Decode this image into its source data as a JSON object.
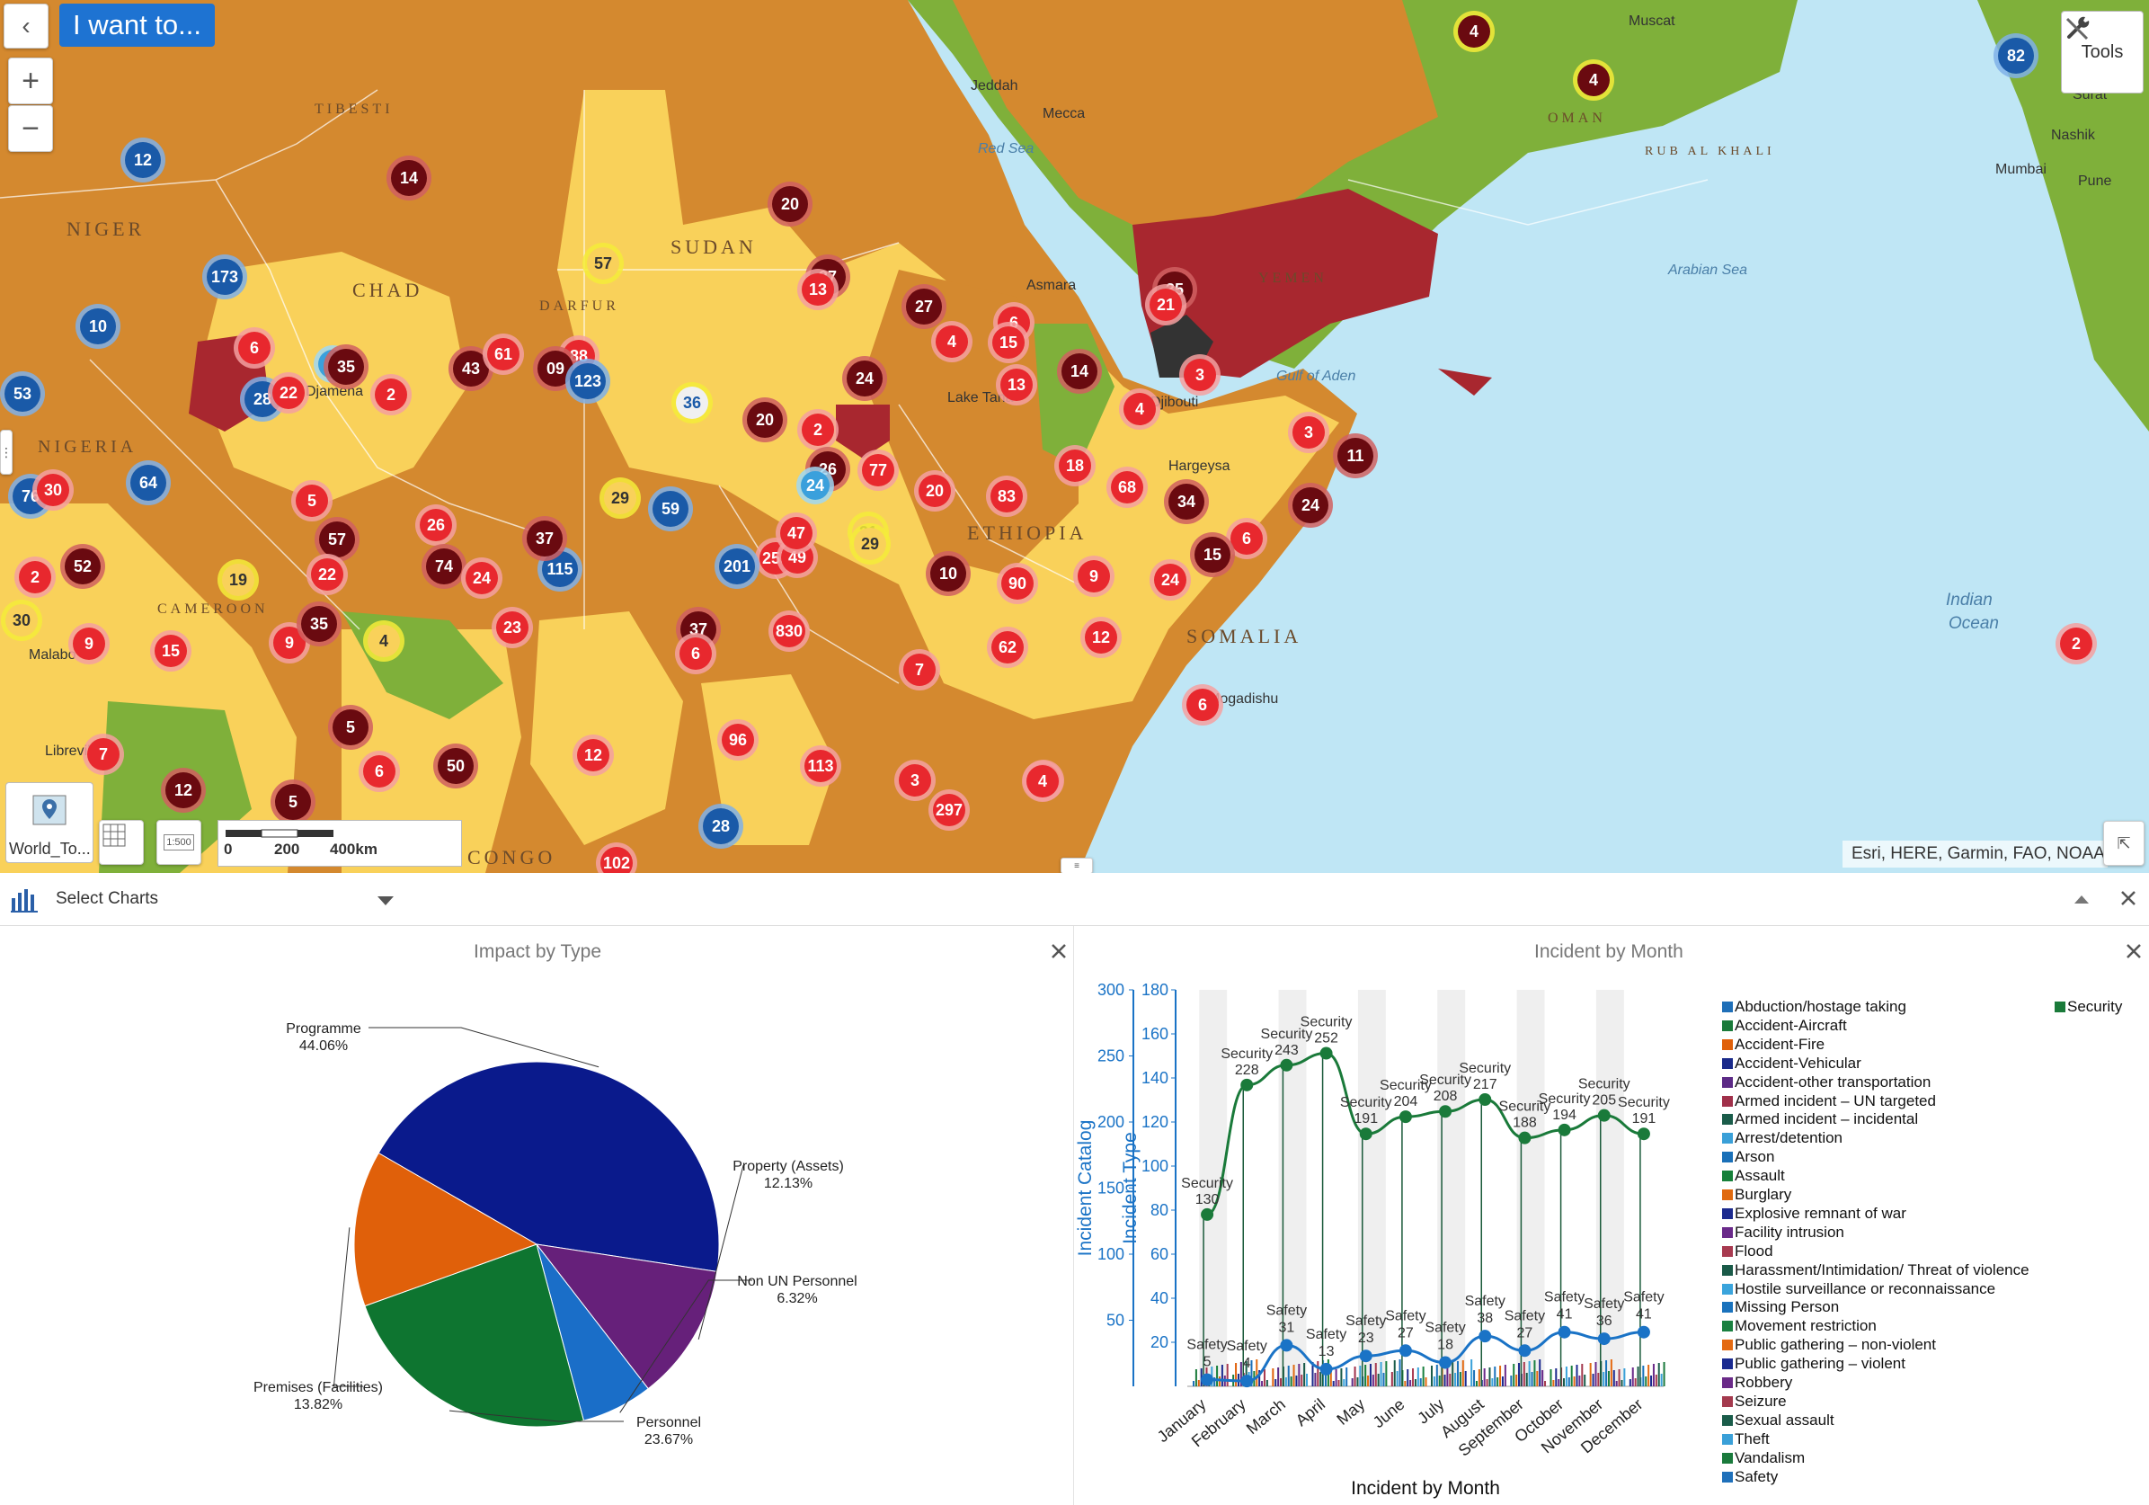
{
  "map": {
    "i_want_to": "I want to...",
    "tools_label": "Tools",
    "zoom_in": "+",
    "zoom_out": "−",
    "attribution": "Esri, HERE, Garmin, FAO, NOAA, U",
    "basemap_label": "World_To...",
    "scale": {
      "t0": "0",
      "t1": "200",
      "t2": "400km"
    },
    "scale_button": "1:500",
    "places": [
      {
        "name": "NIGER"
      },
      {
        "name": "TIBESTI"
      },
      {
        "name": "CHAD"
      },
      {
        "name": "NIGERIA"
      },
      {
        "name": "SUDAN"
      },
      {
        "name": "DARFUR"
      },
      {
        "name": "CAMEROON"
      },
      {
        "name": "ETHIOPIA"
      },
      {
        "name": "SOMALIA"
      },
      {
        "name": "OMAN"
      },
      {
        "name": "YEMEN"
      },
      {
        "name": "Muscat"
      },
      {
        "name": "Jeddah"
      },
      {
        "name": "Mecca"
      },
      {
        "name": "Red Sea"
      },
      {
        "name": "Asmara"
      },
      {
        "name": "Djibouti"
      },
      {
        "name": "Gulf of Aden"
      },
      {
        "name": "Arabian Sea"
      },
      {
        "name": "Indian"
      },
      {
        "name": "Ocean"
      },
      {
        "name": "Mogadishu"
      },
      {
        "name": "Mumbai"
      },
      {
        "name": "Libreville"
      },
      {
        "name": "Malabo"
      },
      {
        "name": "Djamena"
      },
      {
        "name": "Hargeysa"
      },
      {
        "name": "Nashik"
      },
      {
        "name": "Pune"
      },
      {
        "name": "Surat"
      },
      {
        "name": "Lake Tana"
      },
      {
        "name": "CONGO"
      },
      {
        "name": "RUB AL KHALI"
      }
    ],
    "clusters": [
      {
        "label": "4",
        "kind": "yellow-ring"
      },
      {
        "label": "4",
        "kind": "yellow-ring"
      },
      {
        "label": "82",
        "kind": "blue"
      },
      {
        "label": "12",
        "kind": "blue"
      },
      {
        "label": "14",
        "kind": "darkred"
      },
      {
        "label": "20",
        "kind": "darkred"
      },
      {
        "label": "57",
        "kind": "yellow-ring-dark"
      },
      {
        "label": "173",
        "kind": "blue"
      },
      {
        "label": "10",
        "kind": "blue"
      },
      {
        "label": "53",
        "kind": "blue"
      },
      {
        "label": "6",
        "kind": "red"
      },
      {
        "label": "28",
        "kind": "blue"
      },
      {
        "label": "22",
        "kind": "red"
      },
      {
        "label": "3",
        "kind": "lightblue"
      },
      {
        "label": "35",
        "kind": "darkred"
      },
      {
        "label": "2",
        "kind": "red"
      },
      {
        "label": "43",
        "kind": "darkred"
      },
      {
        "label": "61",
        "kind": "red"
      },
      {
        "label": "88",
        "kind": "red"
      },
      {
        "label": "09",
        "kind": "darkred"
      },
      {
        "label": "123",
        "kind": "blue"
      },
      {
        "label": "36",
        "kind": "blue-ring"
      },
      {
        "label": "37",
        "kind": "darkred"
      },
      {
        "label": "13",
        "kind": "red"
      },
      {
        "label": "27",
        "kind": "darkred"
      },
      {
        "label": "6",
        "kind": "red"
      },
      {
        "label": "15",
        "kind": "red"
      },
      {
        "label": "4",
        "kind": "red"
      },
      {
        "label": "24",
        "kind": "darkred"
      },
      {
        "label": "13",
        "kind": "red"
      },
      {
        "label": "14",
        "kind": "darkred"
      },
      {
        "label": "35",
        "kind": "darkred"
      },
      {
        "label": "21",
        "kind": "red"
      },
      {
        "label": "3",
        "kind": "red"
      },
      {
        "label": "4",
        "kind": "red"
      },
      {
        "label": "3",
        "kind": "red"
      },
      {
        "label": "11",
        "kind": "darkred"
      },
      {
        "label": "20",
        "kind": "darkred"
      },
      {
        "label": "2",
        "kind": "red"
      },
      {
        "label": "77",
        "kind": "red"
      },
      {
        "label": "20",
        "kind": "red"
      },
      {
        "label": "83",
        "kind": "red"
      },
      {
        "label": "18",
        "kind": "red"
      },
      {
        "label": "68",
        "kind": "red"
      },
      {
        "label": "34",
        "kind": "darkred"
      },
      {
        "label": "24",
        "kind": "darkred"
      },
      {
        "label": "6",
        "kind": "red"
      },
      {
        "label": "15",
        "kind": "darkred"
      },
      {
        "label": "24",
        "kind": "red"
      },
      {
        "label": "9",
        "kind": "red"
      },
      {
        "label": "90",
        "kind": "red"
      },
      {
        "label": "10",
        "kind": "darkred"
      },
      {
        "label": "12",
        "kind": "red"
      },
      {
        "label": "62",
        "kind": "red"
      },
      {
        "label": "7",
        "kind": "red"
      },
      {
        "label": "6",
        "kind": "red"
      },
      {
        "label": "4",
        "kind": "red"
      },
      {
        "label": "297",
        "kind": "red"
      },
      {
        "label": "2",
        "kind": "red"
      },
      {
        "label": "76",
        "kind": "blue"
      },
      {
        "label": "30",
        "kind": "red"
      },
      {
        "label": "64",
        "kind": "blue"
      },
      {
        "label": "5",
        "kind": "red"
      },
      {
        "label": "52",
        "kind": "darkred"
      },
      {
        "label": "2",
        "kind": "red"
      },
      {
        "label": "30",
        "kind": "yellow-ring-dark"
      },
      {
        "label": "9",
        "kind": "red"
      },
      {
        "label": "15",
        "kind": "red"
      },
      {
        "label": "57",
        "kind": "darkred"
      },
      {
        "label": "22",
        "kind": "red"
      },
      {
        "label": "26",
        "kind": "red"
      },
      {
        "label": "74",
        "kind": "darkred"
      },
      {
        "label": "24",
        "kind": "red"
      },
      {
        "label": "115",
        "kind": "blue"
      },
      {
        "label": "37",
        "kind": "darkred"
      },
      {
        "label": "19",
        "kind": "yellow-ring-dark"
      },
      {
        "label": "9",
        "kind": "red"
      },
      {
        "label": "35",
        "kind": "darkred"
      },
      {
        "label": "4",
        "kind": "yellow-ring-dark"
      },
      {
        "label": "23",
        "kind": "red"
      },
      {
        "label": "29",
        "kind": "yellow-ring-dark"
      },
      {
        "label": "59",
        "kind": "blue"
      },
      {
        "label": "255",
        "kind": "red"
      },
      {
        "label": "201",
        "kind": "blue"
      },
      {
        "label": "49",
        "kind": "red"
      },
      {
        "label": "31",
        "kind": "yellow-ring-dark"
      },
      {
        "label": "47",
        "kind": "red"
      },
      {
        "label": "29",
        "kind": "yellow-ring-dark"
      },
      {
        "label": "26",
        "kind": "darkred"
      },
      {
        "label": "24",
        "kind": "lightblue"
      },
      {
        "label": "37",
        "kind": "darkred"
      },
      {
        "label": "6",
        "kind": "red"
      },
      {
        "label": "830",
        "kind": "red"
      },
      {
        "label": "5",
        "kind": "darkred"
      },
      {
        "label": "50",
        "kind": "darkred"
      },
      {
        "label": "12",
        "kind": "red"
      },
      {
        "label": "6",
        "kind": "red"
      },
      {
        "label": "96",
        "kind": "red"
      },
      {
        "label": "113",
        "kind": "red"
      },
      {
        "label": "12",
        "kind": "darkred"
      },
      {
        "label": "5",
        "kind": "darkred"
      },
      {
        "label": "4",
        "kind": "red"
      },
      {
        "label": "7",
        "kind": "red"
      },
      {
        "label": "28",
        "kind": "blue"
      },
      {
        "label": "102",
        "kind": "red"
      },
      {
        "label": "3",
        "kind": "red"
      },
      {
        "label": "2",
        "kind": "red"
      }
    ]
  },
  "chart_bar": {
    "select_label": "Select Charts"
  },
  "pie_panel": {
    "title": "Impact by Type"
  },
  "line_panel": {
    "title": "Incident by Month"
  },
  "chart_data": [
    {
      "type": "pie",
      "title": "Impact by Type",
      "slices": [
        {
          "name": "Programme",
          "pct_label": "44.06%",
          "value": 44.06,
          "color": "#0a1a8c"
        },
        {
          "name": "Property (Assets)",
          "pct_label": "12.13%",
          "value": 12.13,
          "color": "#66207a"
        },
        {
          "name": "Non UN Personnel",
          "pct_label": "6.32%",
          "value": 6.32,
          "color": "#1a6ec8"
        },
        {
          "name": "Personnel",
          "pct_label": "23.67%",
          "value": 23.67,
          "color": "#0e7530"
        },
        {
          "name": "Premises (Facilities)",
          "pct_label": "13.82%",
          "value": 13.82,
          "color": "#e0600a"
        }
      ]
    },
    {
      "type": "line",
      "title": "Incident by Month",
      "xlabel": "Incident by Month",
      "ylabel_left": "Incident Catalog",
      "ylabel_right": "Incident Type",
      "ylim_left": [
        0,
        300
      ],
      "ylim_right": [
        0,
        180
      ],
      "yticks_left": [
        50,
        100,
        150,
        200,
        250,
        300
      ],
      "yticks_right": [
        20,
        40,
        60,
        80,
        100,
        120,
        140,
        160,
        180
      ],
      "categories": [
        "January",
        "February",
        "March",
        "April",
        "May",
        "June",
        "July",
        "August",
        "September",
        "October",
        "November",
        "December"
      ],
      "series": [
        {
          "name": "Security",
          "values": [
            130,
            228,
            243,
            252,
            191,
            204,
            208,
            217,
            188,
            194,
            205,
            191
          ],
          "color": "#1a7a3a"
        },
        {
          "name": "Safety",
          "values": [
            5,
            4,
            31,
            13,
            23,
            27,
            18,
            38,
            27,
            41,
            36,
            41
          ],
          "color": "#1a73c6"
        }
      ],
      "legend_prefix_security": "Security",
      "legend_prefix_safety": "Safety",
      "legend": [
        {
          "label": "Abduction/hostage taking",
          "color": "#1f6fb8"
        },
        {
          "label": "Accident-Aircraft",
          "color": "#1a7a3a"
        },
        {
          "label": "Accident-Fire",
          "color": "#e0600a"
        },
        {
          "label": "Accident-Vehicular",
          "color": "#1a2a8a"
        },
        {
          "label": "Accident-other transportation",
          "color": "#5c2a86"
        },
        {
          "label": "Armed incident – UN targeted",
          "color": "#a0304a"
        },
        {
          "label": "Armed incident – incidental",
          "color": "#1a5c4a"
        },
        {
          "label": "Arrest/detention",
          "color": "#3aa0d8"
        },
        {
          "label": "Arson",
          "color": "#1a70b8"
        },
        {
          "label": "Assault",
          "color": "#16803a"
        },
        {
          "label": "Burglary",
          "color": "#e06a10"
        },
        {
          "label": "Explosive remnant of war",
          "color": "#1c2a8e"
        },
        {
          "label": "Facility intrusion",
          "color": "#6a2a8a"
        },
        {
          "label": "Flood",
          "color": "#a83a50"
        },
        {
          "label": "Harassment/Intimidation/ Threat of violence",
          "color": "#1a5a48"
        },
        {
          "label": "Hostile surveillance or reconnaissance",
          "color": "#3aa4dc"
        },
        {
          "label": "Missing Person",
          "color": "#1a72bc"
        },
        {
          "label": "Movement restriction",
          "color": "#1a8040"
        },
        {
          "label": "Public gathering – non-violent",
          "color": "#e46a12"
        },
        {
          "label": "Public gathering – violent",
          "color": "#1a2a90"
        },
        {
          "label": "Robbery",
          "color": "#6a2a88"
        },
        {
          "label": "Seizure",
          "color": "#a43a4e"
        },
        {
          "label": "Sexual assault",
          "color": "#1a5c4a"
        },
        {
          "label": "Theft",
          "color": "#3aa0d8"
        },
        {
          "label": "Vandalism",
          "color": "#1a7a3c"
        },
        {
          "label": "Safety",
          "color": "#1f70ba"
        }
      ],
      "legend_right": [
        {
          "label": "Security",
          "color": "#1a7a3a"
        }
      ]
    }
  ]
}
